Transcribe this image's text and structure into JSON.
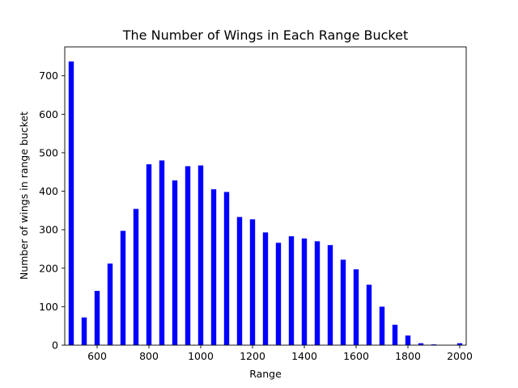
{
  "chart_data": {
    "type": "bar",
    "title": "The Number of Wings in Each Range Bucket",
    "xlabel": "Range",
    "ylabel": "Number of wings in range bucket",
    "bar_color": "#0000ff",
    "x": [
      500,
      550,
      600,
      650,
      700,
      750,
      800,
      850,
      900,
      950,
      1000,
      1050,
      1100,
      1150,
      1200,
      1250,
      1300,
      1350,
      1400,
      1450,
      1500,
      1550,
      1600,
      1650,
      1700,
      1750,
      1800,
      1850,
      1900,
      1950,
      2000
    ],
    "values": [
      737,
      72,
      141,
      212,
      297,
      354,
      470,
      480,
      428,
      465,
      467,
      405,
      398,
      333,
      327,
      293,
      266,
      283,
      277,
      270,
      260,
      222,
      197,
      157,
      100,
      53,
      25,
      5,
      2,
      0,
      5
    ],
    "xlim": [
      475,
      2025
    ],
    "ylim": [
      0,
      775
    ],
    "xticks": [
      600,
      800,
      1000,
      1200,
      1400,
      1600,
      1800,
      2000
    ],
    "yticks": [
      0,
      100,
      200,
      300,
      400,
      500,
      600,
      700
    ],
    "bar_width": 20,
    "grid": false,
    "legend": "none"
  }
}
